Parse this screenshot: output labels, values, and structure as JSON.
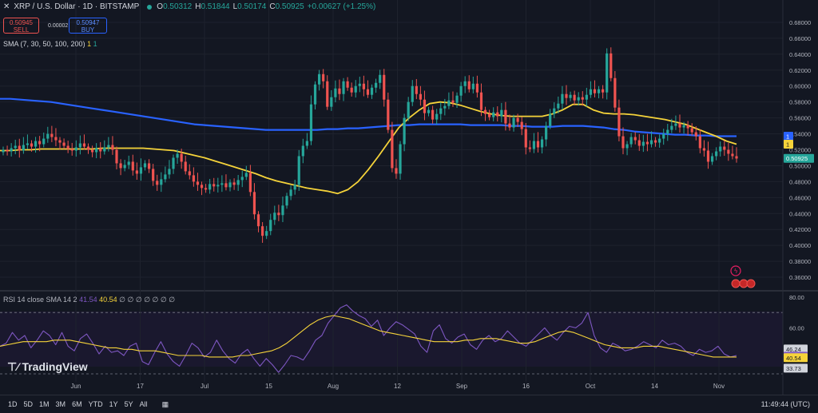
{
  "header": {
    "symbol": "XRP / U.S. Dollar · 1D · BITSTAMP",
    "open_label": "O",
    "open": "0.50312",
    "high_label": "H",
    "high": "0.51844",
    "low_label": "L",
    "low": "0.50174",
    "close_label": "C",
    "close": "0.50925",
    "change": "+0.00627 (+1.25%)"
  },
  "trade": {
    "sell_price": "0.50945",
    "sell_label": "SELL",
    "buy_price": "0.50947",
    "buy_label": "BUY",
    "spread": "0.00002"
  },
  "sma_legend": {
    "label": "SMA (7, 30, 50, 100, 200)",
    "v1": "1",
    "v2": "1"
  },
  "rsi_legend": {
    "label": "RSI 14 close SMA 14 2",
    "rsi": "41.54",
    "sma": "40.54",
    "rest": "∅ ∅ ∅ ∅ ∅ ∅ ∅"
  },
  "logo": "TradingView",
  "toolbar": {
    "ranges": [
      "1D",
      "5D",
      "1M",
      "3M",
      "6M",
      "YTD",
      "1Y",
      "5Y",
      "All"
    ],
    "clock": "11:49:44 (UTC)"
  },
  "colors": {
    "up": "#26a69a",
    "down": "#ef5350",
    "sma_short": "#f5d33a",
    "sma_long": "#2962ff",
    "rsi": "#7e57c2"
  },
  "chart_data": [
    {
      "type": "candlestick",
      "title": "XRP / U.S. Dollar · 1D · BITSTAMP",
      "ylim": [
        0.35,
        0.69
      ],
      "y_ticks": [
        "0.68000",
        "0.66000",
        "0.64000",
        "0.62000",
        "0.60000",
        "0.58000",
        "0.56000",
        "0.54000",
        "0.52000",
        "0.50000",
        "0.48000",
        "0.46000",
        "0.44000",
        "0.42000",
        "0.40000",
        "0.38000",
        "0.36000"
      ],
      "x_labels": [
        "Jun",
        "17",
        "Jul",
        "15",
        "Aug",
        "12",
        "Sep",
        "16",
        "Oct",
        "14",
        "Nov"
      ],
      "price_markers": [
        {
          "label": "1",
          "value": 0.537,
          "color": "#2962ff"
        },
        {
          "label": "1",
          "value": 0.527,
          "color": "#f5d33a"
        },
        {
          "label": "0.50925",
          "value": 0.50925,
          "color": "#26a69a"
        }
      ],
      "candles_close": [
        0.52,
        0.518,
        0.522,
        0.525,
        0.519,
        0.526,
        0.528,
        0.524,
        0.531,
        0.527,
        0.534,
        0.54,
        0.536,
        0.532,
        0.529,
        0.525,
        0.521,
        0.519,
        0.523,
        0.528,
        0.524,
        0.52,
        0.517,
        0.522,
        0.518,
        0.523,
        0.526,
        0.52,
        0.503,
        0.497,
        0.501,
        0.505,
        0.494,
        0.49,
        0.498,
        0.503,
        0.496,
        0.481,
        0.476,
        0.483,
        0.489,
        0.496,
        0.51,
        0.515,
        0.505,
        0.493,
        0.488,
        0.48,
        0.476,
        0.472,
        0.47,
        0.477,
        0.474,
        0.476,
        0.478,
        0.473,
        0.479,
        0.476,
        0.482,
        0.486,
        0.491,
        0.467,
        0.439,
        0.424,
        0.412,
        0.418,
        0.432,
        0.441,
        0.438,
        0.45,
        0.462,
        0.47,
        0.476,
        0.512,
        0.525,
        0.531,
        0.577,
        0.602,
        0.615,
        0.606,
        0.574,
        0.586,
        0.597,
        0.59,
        0.606,
        0.598,
        0.592,
        0.6,
        0.603,
        0.596,
        0.589,
        0.598,
        0.604,
        0.614,
        0.583,
        0.545,
        0.497,
        0.49,
        0.527,
        0.56,
        0.58,
        0.6,
        0.59,
        0.583,
        0.566,
        0.57,
        0.558,
        0.565,
        0.572,
        0.575,
        0.582,
        0.579,
        0.588,
        0.6,
        0.606,
        0.596,
        0.603,
        0.592,
        0.57,
        0.565,
        0.561,
        0.567,
        0.562,
        0.57,
        0.553,
        0.548,
        0.56,
        0.555,
        0.546,
        0.523,
        0.521,
        0.531,
        0.523,
        0.533,
        0.55,
        0.565,
        0.572,
        0.578,
        0.59,
        0.585,
        0.589,
        0.582,
        0.586,
        0.583,
        0.589,
        0.596,
        0.591,
        0.596,
        0.592,
        0.641,
        0.61,
        0.573,
        0.537,
        0.522,
        0.527,
        0.536,
        0.532,
        0.525,
        0.53,
        0.527,
        0.532,
        0.529,
        0.534,
        0.54,
        0.545,
        0.55,
        0.553,
        0.548,
        0.551,
        0.547,
        0.542,
        0.537,
        0.522,
        0.519,
        0.505,
        0.512,
        0.518,
        0.524,
        0.52,
        0.515,
        0.512,
        0.509
      ],
      "sma_short": [
        0.519,
        0.519,
        0.52,
        0.52,
        0.521,
        0.521,
        0.521,
        0.521,
        0.521,
        0.521,
        0.522,
        0.522,
        0.522,
        0.522,
        0.522,
        0.521,
        0.52,
        0.519,
        0.516,
        0.513,
        0.51,
        0.506,
        0.502,
        0.498,
        0.494,
        0.49,
        0.485,
        0.481,
        0.478,
        0.475,
        0.472,
        0.47,
        0.468,
        0.465,
        0.47,
        0.48,
        0.495,
        0.512,
        0.53,
        0.548,
        0.56,
        0.57,
        0.578,
        0.58,
        0.579,
        0.576,
        0.572,
        0.568,
        0.565,
        0.563,
        0.562,
        0.562,
        0.562,
        0.562,
        0.565,
        0.57,
        0.577,
        0.577,
        0.57,
        0.566,
        0.565,
        0.565,
        0.564,
        0.562,
        0.56,
        0.558,
        0.555,
        0.552,
        0.547,
        0.542,
        0.537,
        0.531,
        0.527
      ],
      "sma_long": [
        0.584,
        0.584,
        0.583,
        0.582,
        0.581,
        0.58,
        0.578,
        0.576,
        0.574,
        0.572,
        0.57,
        0.568,
        0.566,
        0.564,
        0.562,
        0.56,
        0.558,
        0.556,
        0.554,
        0.552,
        0.551,
        0.55,
        0.549,
        0.548,
        0.547,
        0.546,
        0.545,
        0.545,
        0.545,
        0.545,
        0.545,
        0.545,
        0.546,
        0.546,
        0.547,
        0.547,
        0.548,
        0.549,
        0.55,
        0.551,
        0.551,
        0.552,
        0.552,
        0.552,
        0.552,
        0.552,
        0.551,
        0.551,
        0.551,
        0.551,
        0.55,
        0.55,
        0.549,
        0.549,
        0.549,
        0.55,
        0.55,
        0.55,
        0.549,
        0.548,
        0.546,
        0.545,
        0.543,
        0.542,
        0.541,
        0.54,
        0.539,
        0.539,
        0.538,
        0.538,
        0.537,
        0.537,
        0.537
      ]
    },
    {
      "type": "line",
      "title": "RSI 14 close SMA 14 2",
      "ylim": [
        30,
        80
      ],
      "y_ticks": [
        "80.00",
        "60.00"
      ],
      "levels": [
        70,
        30
      ],
      "markers": [
        {
          "label": "46.24",
          "value": 46.24,
          "color": "#d1d4dc"
        },
        {
          "label": "41.54",
          "value": 41.54,
          "color": "#7e57c2"
        },
        {
          "label": "40.54",
          "value": 40.54,
          "color": "#f5d33a"
        },
        {
          "label": "33.73",
          "value": 33.73,
          "color": "#d1d4dc"
        }
      ],
      "series": [
        {
          "name": "RSI",
          "values": [
            48,
            50,
            57,
            52,
            55,
            47,
            52,
            58,
            55,
            49,
            57,
            48,
            45,
            53,
            56,
            50,
            43,
            48,
            44,
            45,
            42,
            48,
            50,
            38,
            36,
            44,
            51,
            43,
            38,
            35,
            42,
            50,
            47,
            41,
            44,
            52,
            45,
            40,
            37,
            43,
            46,
            40,
            35,
            40,
            36,
            31,
            36,
            42,
            41,
            39,
            45,
            52,
            55,
            63,
            68,
            73,
            75,
            71,
            68,
            66,
            61,
            65,
            55,
            60,
            64,
            62,
            59,
            56,
            48,
            44,
            58,
            62,
            53,
            50,
            54,
            56,
            49,
            46,
            52,
            55,
            51,
            53,
            58,
            54,
            50,
            48,
            52,
            56,
            60,
            55,
            52,
            57,
            61,
            60,
            63,
            70,
            55,
            47,
            44,
            50,
            48,
            45,
            46,
            48,
            51,
            49,
            47,
            52,
            49,
            50,
            48,
            44,
            42,
            46,
            44,
            45,
            48,
            43,
            41,
            42
          ]
        },
        {
          "name": "SMA",
          "values": [
            48,
            49,
            50,
            51,
            51,
            51,
            51,
            52,
            52,
            52,
            51,
            50,
            49,
            48,
            47,
            47,
            46,
            46,
            45,
            45,
            45,
            44,
            43,
            42,
            42,
            42,
            42,
            41,
            41,
            41,
            41,
            42,
            42,
            43,
            44,
            45,
            47,
            50,
            54,
            58,
            62,
            65,
            67,
            68,
            67,
            66,
            64,
            62,
            60,
            58,
            57,
            56,
            55,
            54,
            53,
            52,
            51,
            51,
            51,
            51,
            52,
            52,
            53,
            53,
            53,
            52,
            51,
            50,
            50,
            51,
            53,
            55,
            57,
            58,
            57,
            55,
            53,
            51,
            49,
            48,
            47,
            47,
            47,
            48,
            48,
            48,
            47,
            46,
            45,
            44,
            43,
            42,
            41,
            41,
            41,
            41
          ]
        }
      ]
    }
  ]
}
